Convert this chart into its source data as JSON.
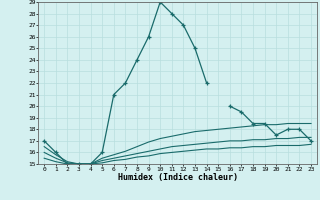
{
  "title": "",
  "xlabel": "Humidex (Indice chaleur)",
  "x_values": [
    0,
    1,
    2,
    3,
    4,
    5,
    6,
    7,
    8,
    9,
    10,
    11,
    12,
    13,
    14,
    15,
    16,
    17,
    18,
    19,
    20,
    21,
    22,
    23
  ],
  "line1_y": [
    17,
    16,
    15,
    15,
    15,
    16,
    21,
    22,
    24,
    26,
    29,
    28,
    27,
    25,
    22,
    null,
    20,
    19.5,
    18.5,
    18.5,
    17.5,
    18,
    18,
    17
  ],
  "line2_y": [
    16.5,
    15.8,
    15.2,
    15.0,
    15.0,
    15.5,
    15.8,
    16.1,
    16.5,
    16.9,
    17.2,
    17.4,
    17.6,
    17.8,
    17.9,
    18.0,
    18.1,
    18.2,
    18.3,
    18.4,
    18.4,
    18.5,
    18.5,
    18.5
  ],
  "line3_y": [
    16.0,
    15.5,
    15.1,
    15.0,
    15.0,
    15.3,
    15.5,
    15.7,
    15.9,
    16.1,
    16.3,
    16.5,
    16.6,
    16.7,
    16.8,
    16.9,
    17.0,
    17.0,
    17.1,
    17.1,
    17.2,
    17.2,
    17.3,
    17.3
  ],
  "line4_y": [
    15.5,
    15.2,
    15.0,
    15.0,
    15.0,
    15.1,
    15.3,
    15.4,
    15.6,
    15.7,
    15.9,
    16.0,
    16.1,
    16.2,
    16.3,
    16.3,
    16.4,
    16.4,
    16.5,
    16.5,
    16.6,
    16.6,
    16.6,
    16.7
  ],
  "line_color": "#1a6b6b",
  "bg_color": "#d4f0f0",
  "grid_color": "#b8dede",
  "ylim": [
    15,
    29
  ],
  "xlim": [
    -0.5,
    23.5
  ],
  "yticks": [
    15,
    16,
    17,
    18,
    19,
    20,
    21,
    22,
    23,
    24,
    25,
    26,
    27,
    28,
    29
  ],
  "xticks": [
    0,
    1,
    2,
    3,
    4,
    5,
    6,
    7,
    8,
    9,
    10,
    11,
    12,
    13,
    14,
    15,
    16,
    17,
    18,
    19,
    20,
    21,
    22,
    23
  ]
}
